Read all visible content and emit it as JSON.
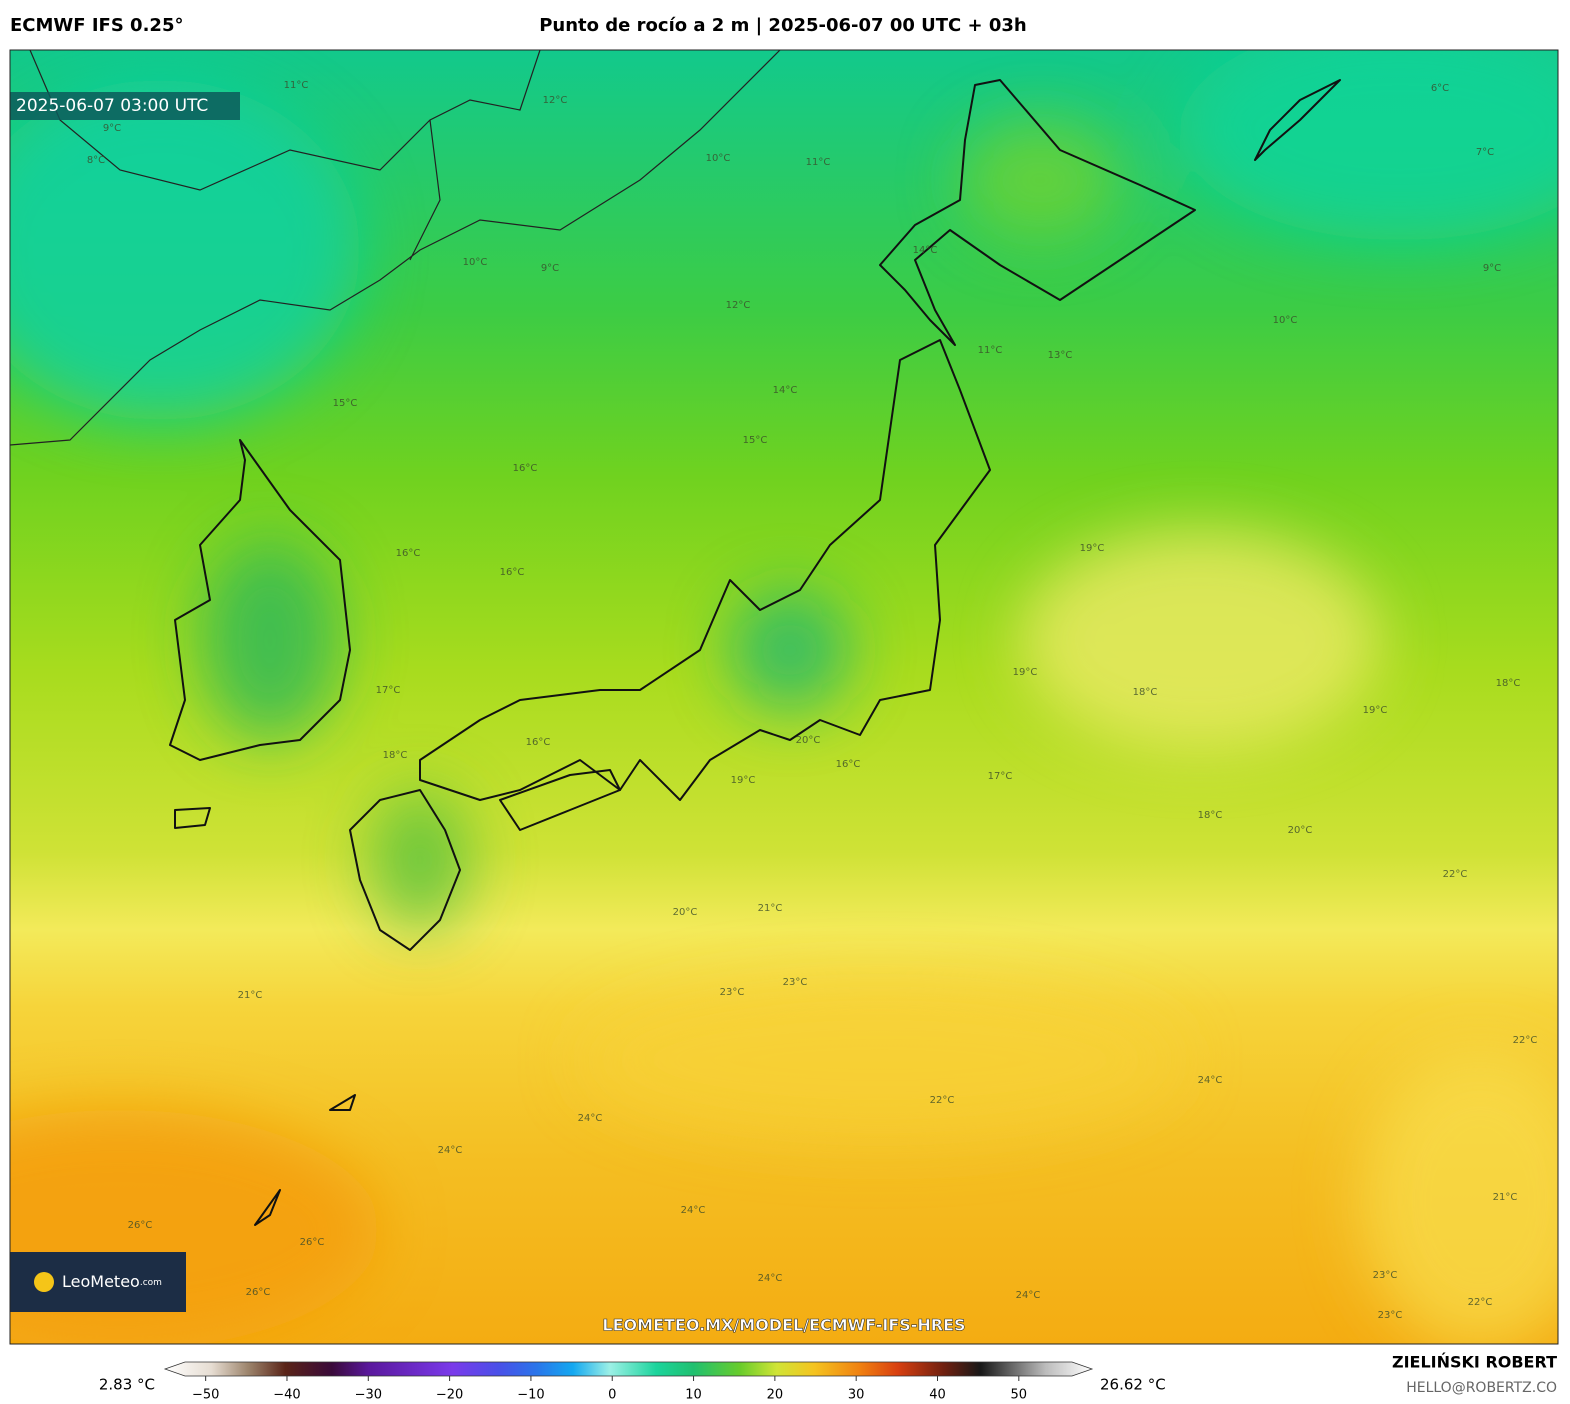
{
  "header": {
    "model": "ECMWF IFS 0.25°",
    "title": "Punto de rocío a 2 m | 2025-06-07 00 UTC + 03h"
  },
  "map": {
    "valid_time": "2025-06-07 03:00 UTC",
    "watermark": "LEOMETEO.MX/MODEL/ECMWF-IFS-HRES",
    "logo": "LeoMeteo",
    "logo_suffix": ".com",
    "contour_labels": [
      "9°C",
      "8°C",
      "11°C",
      "12°C",
      "10°C",
      "11°C",
      "9°C",
      "10°C",
      "14°C",
      "12°C",
      "11°C",
      "13°C",
      "9°C",
      "10°C",
      "7°C",
      "6°C",
      "14°C",
      "15°C",
      "16°C",
      "15°C",
      "16°C",
      "16°C",
      "19°C",
      "19°C",
      "18°C",
      "18°C",
      "19°C",
      "17°C",
      "16°C",
      "18°C",
      "20°C",
      "19°C",
      "16°C",
      "17°C",
      "18°C",
      "20°C",
      "22°C",
      "21°C",
      "20°C",
      "23°C",
      "23°C",
      "21°C",
      "24°C",
      "24°C",
      "22°C",
      "24°C",
      "22°C",
      "26°C",
      "26°C",
      "26°C",
      "24°C",
      "24°C",
      "24°C",
      "23°C",
      "22°C",
      "23°C",
      "21°C"
    ]
  },
  "colorbar": {
    "min_label": "2.83 °C",
    "max_label": "26.62 °C",
    "lim": [
      -55,
      59
    ],
    "ticks": [
      {
        "value": -50,
        "label": "−50"
      },
      {
        "value": -40,
        "label": "−40"
      },
      {
        "value": -30,
        "label": "−30"
      },
      {
        "value": -20,
        "label": "−20"
      },
      {
        "value": -10,
        "label": "−10"
      },
      0,
      10,
      20,
      30,
      40,
      50
    ]
  },
  "footer": {
    "author": "ZIELIŃSKI ROBERT",
    "email": "HELLO@ROBERTZ.CO"
  }
}
